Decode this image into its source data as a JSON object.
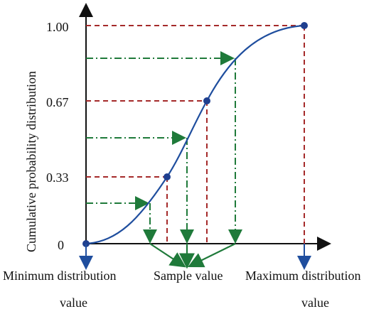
{
  "colors": {
    "axis": "#111111",
    "curve": "#1f4e9e",
    "point": "#1f3f8f",
    "dashed_red": "#a52a2a",
    "green_arrow": "#1f7a3a",
    "blue_arrow": "#1f4e9e"
  },
  "labels": {
    "y_axis": "Cumulative probability distribution",
    "min_line1": "Minimum distribution",
    "min_line2": "value",
    "sample": "Sample value",
    "max_line1": "Maximum distribution",
    "max_line2": "value"
  },
  "y_ticks": [
    "1.00",
    "0.67",
    "0.33",
    "0"
  ],
  "diagram": {
    "curve": "S-shaped cumulative distribution",
    "key_points": [
      "0",
      "0.33",
      "0.67",
      "1.00"
    ],
    "sample_arrows": 3
  }
}
